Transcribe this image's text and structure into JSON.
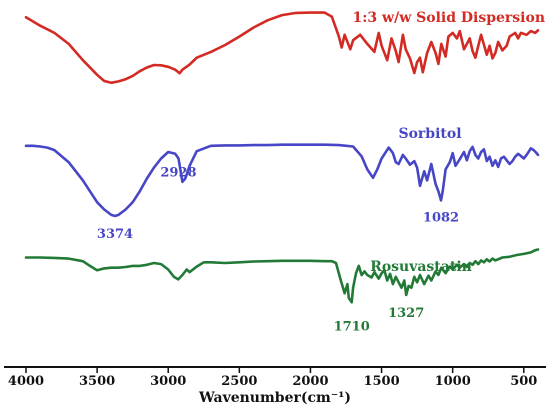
{
  "chart_data": {
    "type": "line",
    "title": "",
    "xlabel": "Wavenumber(cm⁻¹)",
    "ylabel": "",
    "xlim": [
      4000,
      400
    ],
    "x_reversed": true,
    "y_scale": "offset transmittance (a.u.)",
    "ylim": [
      0,
      100
    ],
    "grid": false,
    "legend": "none; series labeled inline",
    "x_ticks": [
      "4000",
      "3500",
      "3000",
      "2500",
      "2000",
      "1500",
      "1000",
      "500"
    ],
    "x_tick_values": [
      4000,
      3500,
      3000,
      2500,
      2000,
      1500,
      1000,
      500
    ],
    "series": [
      {
        "name": "1:3 w/w Solid Dispersion",
        "color": "#d42a24",
        "points": [
          [
            4000,
            95.8
          ],
          [
            3900,
            93.5
          ],
          [
            3800,
            91.5
          ],
          [
            3700,
            88.5
          ],
          [
            3600,
            84.0
          ],
          [
            3500,
            80.0
          ],
          [
            3450,
            78.3
          ],
          [
            3400,
            77.8
          ],
          [
            3350,
            78.2
          ],
          [
            3300,
            78.8
          ],
          [
            3250,
            79.7
          ],
          [
            3200,
            81.0
          ],
          [
            3150,
            82.0
          ],
          [
            3100,
            82.7
          ],
          [
            3050,
            82.6
          ],
          [
            3000,
            82.2
          ],
          [
            2950,
            81.4
          ],
          [
            2920,
            80.4
          ],
          [
            2900,
            81.4
          ],
          [
            2850,
            82.8
          ],
          [
            2800,
            84.7
          ],
          [
            2700,
            86.3
          ],
          [
            2600,
            88.2
          ],
          [
            2500,
            90.5
          ],
          [
            2400,
            93.0
          ],
          [
            2300,
            95.0
          ],
          [
            2200,
            96.4
          ],
          [
            2100,
            97.0
          ],
          [
            2000,
            97.1
          ],
          [
            1900,
            97.1
          ],
          [
            1850,
            96.0
          ],
          [
            1800,
            90.5
          ],
          [
            1780,
            87.5
          ],
          [
            1760,
            91.0
          ],
          [
            1720,
            87.0
          ],
          [
            1700,
            89.5
          ],
          [
            1650,
            91.0
          ],
          [
            1600,
            88.5
          ],
          [
            1550,
            86.3
          ],
          [
            1520,
            91.5
          ],
          [
            1500,
            88.0
          ],
          [
            1460,
            84.0
          ],
          [
            1430,
            90.0
          ],
          [
            1400,
            86.5
          ],
          [
            1380,
            83.5
          ],
          [
            1350,
            91.0
          ],
          [
            1330,
            87.0
          ],
          [
            1300,
            84.5
          ],
          [
            1270,
            80.5
          ],
          [
            1250,
            83.5
          ],
          [
            1230,
            84.7
          ],
          [
            1210,
            80.7
          ],
          [
            1180,
            86.0
          ],
          [
            1150,
            89.0
          ],
          [
            1120,
            86.0
          ],
          [
            1100,
            83.0
          ],
          [
            1080,
            88.5
          ],
          [
            1050,
            85.0
          ],
          [
            1030,
            90.5
          ],
          [
            1000,
            91.5
          ],
          [
            970,
            90.0
          ],
          [
            950,
            92.0
          ],
          [
            920,
            87.0
          ],
          [
            900,
            88.5
          ],
          [
            880,
            90.0
          ],
          [
            860,
            86.5
          ],
          [
            840,
            84.7
          ],
          [
            820,
            88.0
          ],
          [
            800,
            91.0
          ],
          [
            760,
            85.5
          ],
          [
            740,
            88.0
          ],
          [
            720,
            84.5
          ],
          [
            700,
            86.0
          ],
          [
            680,
            89.0
          ],
          [
            650,
            86.7
          ],
          [
            620,
            88.0
          ],
          [
            600,
            90.5
          ],
          [
            560,
            91.5
          ],
          [
            540,
            90.0
          ],
          [
            520,
            91.5
          ],
          [
            480,
            91.0
          ],
          [
            450,
            92.0
          ],
          [
            420,
            91.5
          ],
          [
            400,
            92.2
          ]
        ]
      },
      {
        "name": "Sorbitol",
        "color": "#4646c6",
        "points": [
          [
            4000,
            60.5
          ],
          [
            3950,
            60.5
          ],
          [
            3900,
            60.3
          ],
          [
            3850,
            60.0
          ],
          [
            3800,
            59.3
          ],
          [
            3700,
            56.0
          ],
          [
            3600,
            51.0
          ],
          [
            3500,
            45.0
          ],
          [
            3450,
            43.0
          ],
          [
            3400,
            41.5
          ],
          [
            3374,
            41.2
          ],
          [
            3350,
            41.5
          ],
          [
            3300,
            43.0
          ],
          [
            3250,
            45.0
          ],
          [
            3200,
            48.0
          ],
          [
            3150,
            51.5
          ],
          [
            3100,
            54.5
          ],
          [
            3050,
            57.0
          ],
          [
            3000,
            58.8
          ],
          [
            2950,
            58.3
          ],
          [
            2928,
            57.0
          ],
          [
            2900,
            50.6
          ],
          [
            2880,
            51.5
          ],
          [
            2850,
            55.0
          ],
          [
            2800,
            59.0
          ],
          [
            2700,
            60.5
          ],
          [
            2600,
            60.6
          ],
          [
            2500,
            60.6
          ],
          [
            2400,
            60.7
          ],
          [
            2300,
            60.7
          ],
          [
            2200,
            60.8
          ],
          [
            2100,
            60.8
          ],
          [
            2000,
            60.8
          ],
          [
            1900,
            60.8
          ],
          [
            1800,
            60.7
          ],
          [
            1700,
            60.3
          ],
          [
            1640,
            57.6
          ],
          [
            1600,
            54.0
          ],
          [
            1560,
            51.7
          ],
          [
            1530,
            54.0
          ],
          [
            1500,
            57.0
          ],
          [
            1450,
            60.0
          ],
          [
            1420,
            58.5
          ],
          [
            1400,
            56.0
          ],
          [
            1380,
            55.5
          ],
          [
            1350,
            58.0
          ],
          [
            1330,
            57.0
          ],
          [
            1300,
            55.3
          ],
          [
            1270,
            56.3
          ],
          [
            1250,
            54.5
          ],
          [
            1230,
            49.5
          ],
          [
            1200,
            53.5
          ],
          [
            1180,
            51.0
          ],
          [
            1150,
            55.5
          ],
          [
            1120,
            50.0
          ],
          [
            1100,
            48.0
          ],
          [
            1082,
            45.5
          ],
          [
            1070,
            48.0
          ],
          [
            1050,
            54.0
          ],
          [
            1020,
            56.0
          ],
          [
            1000,
            58.5
          ],
          [
            980,
            55.0
          ],
          [
            950,
            56.8
          ],
          [
            920,
            58.8
          ],
          [
            900,
            56.5
          ],
          [
            880,
            59.0
          ],
          [
            860,
            60.2
          ],
          [
            840,
            58.0
          ],
          [
            820,
            57.0
          ],
          [
            800,
            58.8
          ],
          [
            780,
            59.5
          ],
          [
            760,
            56.3
          ],
          [
            740,
            57.5
          ],
          [
            720,
            55.0
          ],
          [
            700,
            56.5
          ],
          [
            680,
            54.7
          ],
          [
            660,
            57.0
          ],
          [
            640,
            57.5
          ],
          [
            620,
            56.5
          ],
          [
            600,
            55.5
          ],
          [
            580,
            56.3
          ],
          [
            560,
            57.5
          ],
          [
            540,
            58.3
          ],
          [
            520,
            57.7
          ],
          [
            500,
            57.0
          ],
          [
            480,
            58.0
          ],
          [
            450,
            59.8
          ],
          [
            430,
            59.3
          ],
          [
            410,
            58.5
          ],
          [
            400,
            58.0
          ]
        ],
        "peak_labels": [
          {
            "x": 3374,
            "label": "3374"
          },
          {
            "x": 2928,
            "label": "2928"
          },
          {
            "x": 1082,
            "label": "1082"
          }
        ]
      },
      {
        "name": "Rosuvastatin",
        "color": "#237a37",
        "points": [
          [
            4000,
            29.8
          ],
          [
            3900,
            29.8
          ],
          [
            3800,
            29.7
          ],
          [
            3700,
            29.5
          ],
          [
            3600,
            28.8
          ],
          [
            3550,
            27.5
          ],
          [
            3500,
            26.3
          ],
          [
            3450,
            26.8
          ],
          [
            3400,
            27.0
          ],
          [
            3350,
            27.0
          ],
          [
            3300,
            27.2
          ],
          [
            3250,
            27.5
          ],
          [
            3200,
            27.5
          ],
          [
            3150,
            27.8
          ],
          [
            3100,
            28.3
          ],
          [
            3050,
            28.0
          ],
          [
            3000,
            26.5
          ],
          [
            2960,
            24.5
          ],
          [
            2930,
            23.8
          ],
          [
            2900,
            25.0
          ],
          [
            2870,
            26.5
          ],
          [
            2850,
            25.8
          ],
          [
            2800,
            27.3
          ],
          [
            2750,
            28.5
          ],
          [
            2700,
            28.5
          ],
          [
            2600,
            28.3
          ],
          [
            2500,
            28.5
          ],
          [
            2400,
            28.7
          ],
          [
            2300,
            28.8
          ],
          [
            2200,
            28.9
          ],
          [
            2100,
            28.9
          ],
          [
            2000,
            28.9
          ],
          [
            1900,
            28.8
          ],
          [
            1850,
            28.8
          ],
          [
            1820,
            28.3
          ],
          [
            1790,
            24.0
          ],
          [
            1760,
            20.0
          ],
          [
            1740,
            22.5
          ],
          [
            1730,
            18.7
          ],
          [
            1710,
            17.5
          ],
          [
            1700,
            21.5
          ],
          [
            1680,
            25.5
          ],
          [
            1660,
            27.5
          ],
          [
            1640,
            25.0
          ],
          [
            1620,
            26.0
          ],
          [
            1600,
            25.0
          ],
          [
            1570,
            24.3
          ],
          [
            1550,
            25.8
          ],
          [
            1520,
            24.0
          ],
          [
            1500,
            25.5
          ],
          [
            1480,
            26.3
          ],
          [
            1460,
            23.5
          ],
          [
            1440,
            25.3
          ],
          [
            1420,
            22.5
          ],
          [
            1400,
            24.5
          ],
          [
            1380,
            23.0
          ],
          [
            1360,
            21.5
          ],
          [
            1340,
            23.5
          ],
          [
            1327,
            19.5
          ],
          [
            1310,
            22.0
          ],
          [
            1290,
            21.5
          ],
          [
            1270,
            24.5
          ],
          [
            1250,
            23.0
          ],
          [
            1230,
            25.0
          ],
          [
            1200,
            22.5
          ],
          [
            1170,
            24.8
          ],
          [
            1150,
            23.5
          ],
          [
            1120,
            26.0
          ],
          [
            1100,
            25.0
          ],
          [
            1080,
            27.0
          ],
          [
            1050,
            25.5
          ],
          [
            1020,
            27.3
          ],
          [
            1000,
            26.5
          ],
          [
            970,
            27.8
          ],
          [
            950,
            27.0
          ],
          [
            920,
            28.0
          ],
          [
            900,
            27.2
          ],
          [
            880,
            28.3
          ],
          [
            860,
            27.8
          ],
          [
            840,
            28.8
          ],
          [
            820,
            28.0
          ],
          [
            800,
            29.0
          ],
          [
            780,
            28.5
          ],
          [
            760,
            29.3
          ],
          [
            740,
            28.7
          ],
          [
            720,
            29.5
          ],
          [
            700,
            29.0
          ],
          [
            650,
            29.8
          ],
          [
            600,
            30.0
          ],
          [
            550,
            30.5
          ],
          [
            500,
            30.8
          ],
          [
            450,
            31.2
          ],
          [
            420,
            31.8
          ],
          [
            400,
            32.0
          ]
        ],
        "peak_labels": [
          {
            "x": 1710,
            "label": "1710"
          },
          {
            "x": 1327,
            "label": "1327"
          }
        ]
      }
    ]
  }
}
